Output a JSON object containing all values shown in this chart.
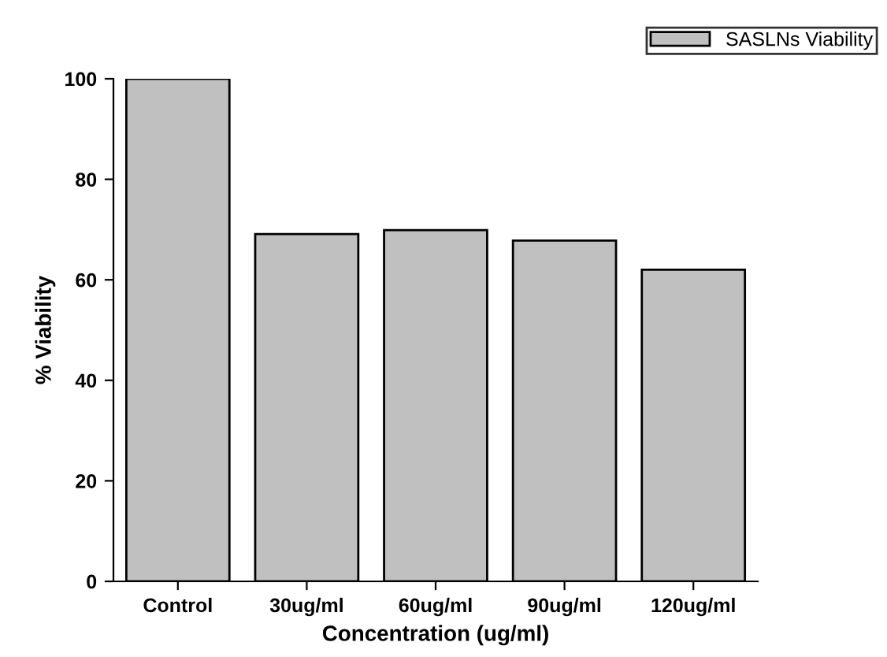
{
  "chart_data": {
    "type": "bar",
    "xlabel": "Concentration (ug/ml)",
    "ylabel": "% Viability",
    "categories": [
      "Control",
      "30ug/ml",
      "60ug/ml",
      "90ug/ml",
      "120ug/ml"
    ],
    "series": [
      {
        "name": "SASLNs Viability",
        "color": "#c0c0c0",
        "values": [
          100,
          69.1,
          69.9,
          67.8,
          62.0
        ]
      }
    ],
    "ylim": [
      0,
      100
    ],
    "yticks": [
      0,
      20,
      40,
      60,
      80,
      100
    ],
    "grid": false,
    "legend": "top right"
  }
}
